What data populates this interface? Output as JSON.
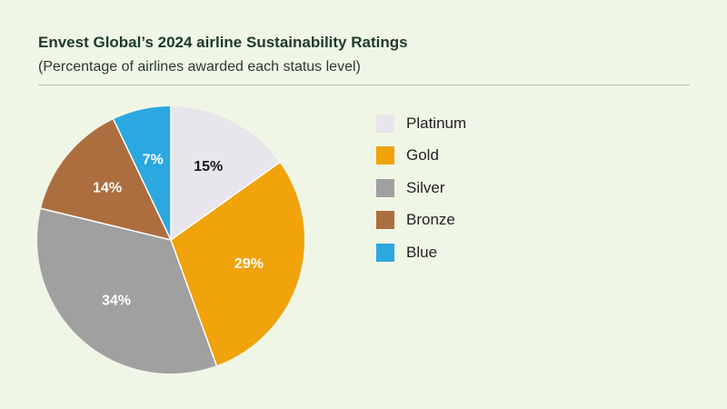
{
  "header": {
    "title": "Envest Global’s 2024 airline Sustainability Ratings",
    "subtitle": "(Percentage of airlines awarded each status level)"
  },
  "chart_data": {
    "type": "pie",
    "title": "Envest Global’s 2024 airline Sustainability Ratings",
    "subtitle": "(Percentage of airlines awarded each status level)",
    "categories": [
      "Platinum",
      "Gold",
      "Silver",
      "Bronze",
      "Blue"
    ],
    "values": [
      15,
      29,
      34,
      14,
      7
    ],
    "labels": [
      "15%",
      "29%",
      "34%",
      "14%",
      "7%"
    ],
    "colors": [
      "#e9e5ec",
      "#f0a30a",
      "#a0a0a0",
      "#ad6e3f",
      "#2ba8e0"
    ],
    "label_colors": [
      "#1a1a1a",
      "#ffffff",
      "#ffffff",
      "#ffffff",
      "#ffffff"
    ],
    "legend_position": "right"
  }
}
